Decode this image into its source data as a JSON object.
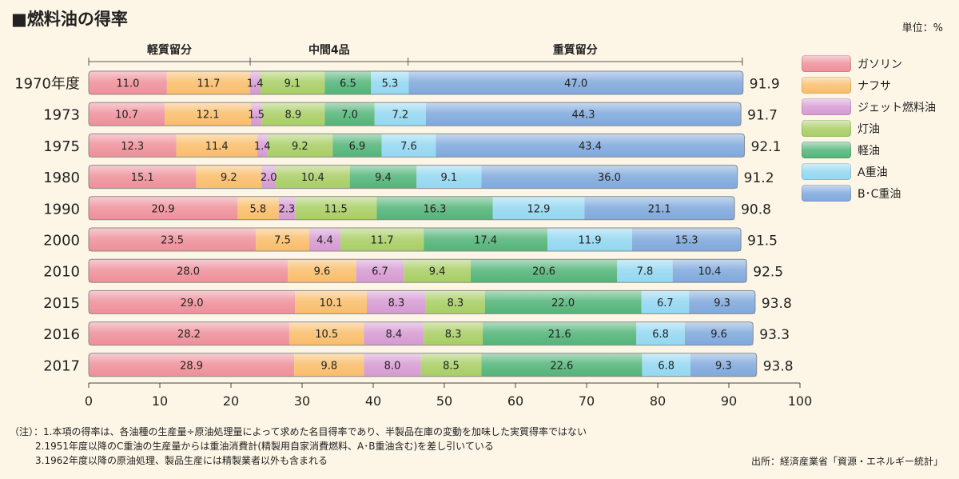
{
  "title": "■燃料油の得率",
  "unit_label": "単位：%",
  "source": "出所：経済産業省「資源・エネルギー統計」",
  "notes": [
    "（注）：1.本項の得率は、各油種の生産量÷原油処理量によって求めた名目得率であり、半製品在庫の変動を加味した実質得率ではない",
    "2.1951年度以降のC重油の生産量からは重油消費計(精製用自家消費燃料、A･B重油含む)を差し引いている",
    "3.1962年度以降の原油処理、製品生産には精製業者以外も含まれる"
  ],
  "chart_data": {
    "type": "bar",
    "orientation": "horizontal",
    "stacked": true,
    "title": "■燃料油の得率",
    "xlim": [
      0,
      100
    ],
    "xticks": [
      0,
      10,
      20,
      30,
      40,
      50,
      60,
      70,
      80,
      90,
      100
    ],
    "categories": [
      "1970年度",
      "1973",
      "1975",
      "1980",
      "1990",
      "2000",
      "2010",
      "2015",
      "2016",
      "2017"
    ],
    "series": [
      {
        "name": "ガソリン",
        "color": "#ee8f9a",
        "values": [
          11.0,
          10.7,
          12.3,
          15.1,
          20.9,
          23.5,
          28.0,
          29.0,
          28.2,
          28.9
        ]
      },
      {
        "name": "ナフサ",
        "color": "#f9bd6a",
        "values": [
          11.7,
          12.1,
          11.4,
          9.2,
          5.8,
          7.5,
          9.6,
          10.1,
          10.5,
          9.8
        ]
      },
      {
        "name": "ジェット燃料油",
        "color": "#d69ad2",
        "values": [
          1.4,
          1.5,
          1.4,
          2.0,
          2.3,
          4.4,
          6.7,
          8.3,
          8.4,
          8.0
        ]
      },
      {
        "name": "灯油",
        "color": "#a8ce64",
        "values": [
          9.1,
          8.9,
          9.2,
          10.4,
          11.5,
          11.7,
          9.4,
          8.3,
          8.3,
          8.5
        ]
      },
      {
        "name": "軽油",
        "color": "#52b478",
        "values": [
          6.5,
          7.0,
          6.9,
          9.4,
          16.3,
          17.4,
          20.6,
          22.0,
          21.6,
          22.6
        ]
      },
      {
        "name": "A重油",
        "color": "#93d7f1",
        "values": [
          5.3,
          7.2,
          7.6,
          9.1,
          12.9,
          11.9,
          7.8,
          6.7,
          6.8,
          6.8
        ]
      },
      {
        "name": "B･C重油",
        "color": "#7fa8dc",
        "values": [
          47.0,
          44.3,
          43.4,
          36.0,
          21.1,
          15.3,
          10.4,
          9.3,
          9.6,
          9.3
        ]
      }
    ],
    "totals": [
      "91.9",
      "91.7",
      "92.1",
      "91.2",
      "90.8",
      "91.5",
      "92.5",
      "93.8",
      "93.3",
      "93.8"
    ],
    "groups": [
      {
        "label": "軽質留分",
        "from": 0,
        "to": 22.7
      },
      {
        "label": "中間4品",
        "from": 22.7,
        "to": 44.9
      },
      {
        "label": "重質留分",
        "from": 44.9,
        "to": 91.9
      }
    ]
  }
}
